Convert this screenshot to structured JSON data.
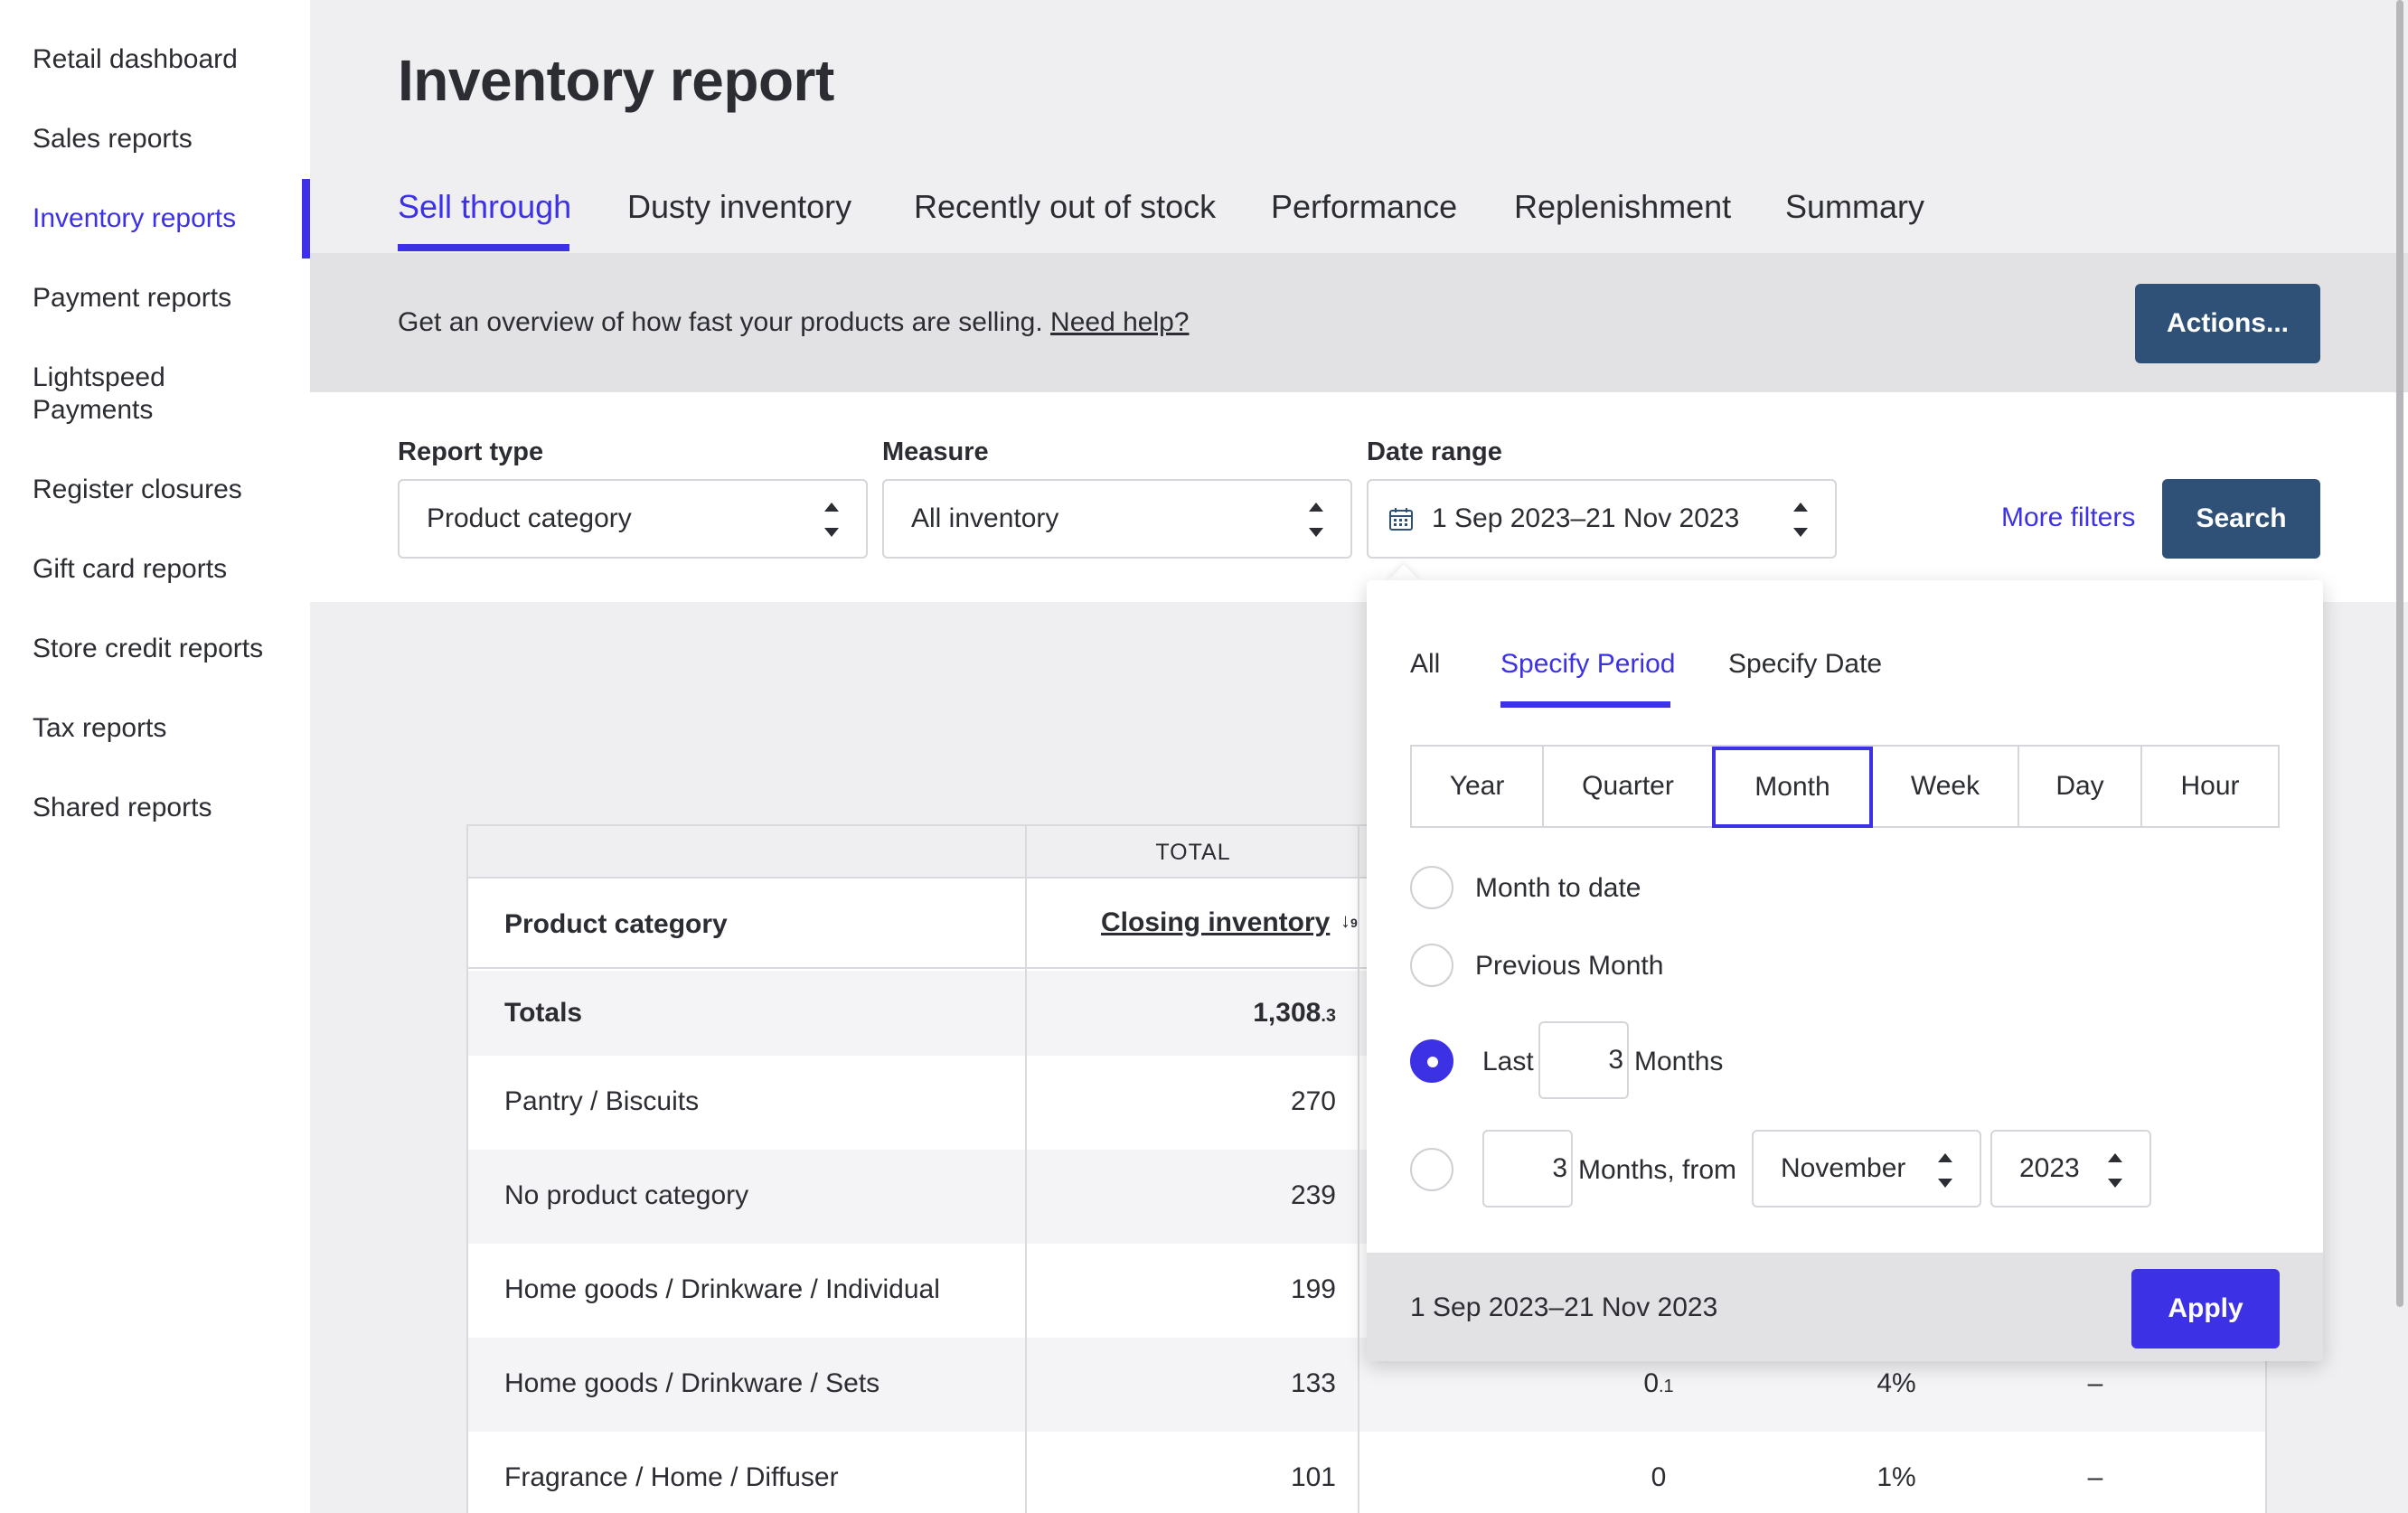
{
  "sidebar": {
    "items": [
      {
        "label": "Retail dashboard"
      },
      {
        "label": "Sales reports"
      },
      {
        "label": "Inventory reports"
      },
      {
        "label": "Payment reports"
      },
      {
        "label": "Lightspeed"
      },
      {
        "label": "Payments"
      },
      {
        "label": "Register closures"
      },
      {
        "label": "Gift card reports"
      },
      {
        "label": "Store credit reports"
      },
      {
        "label": "Tax reports"
      },
      {
        "label": "Shared reports"
      }
    ],
    "active_item": "Inventory reports"
  },
  "page": {
    "title": "Inventory report"
  },
  "tabs": [
    {
      "label": "Sell through"
    },
    {
      "label": "Dusty inventory"
    },
    {
      "label": "Recently out of stock"
    },
    {
      "label": "Performance"
    },
    {
      "label": "Replenishment"
    },
    {
      "label": "Summary"
    }
  ],
  "banner": {
    "text": "Get an overview of how fast your products are selling.",
    "help_link": "Need help?",
    "actions_label": "Actions..."
  },
  "filters": {
    "report_type_label": "Report type",
    "report_type_value": "Product category",
    "measure_label": "Measure",
    "measure_value": "All inventory",
    "date_range_label": "Date range",
    "date_range_value": "1 Sep 2023–21 Nov 2023",
    "more_filters_label": "More filters",
    "search_label": "Search"
  },
  "table": {
    "group_header": "TOTAL",
    "col_name": "Product category",
    "col_closing": "Closing inventory",
    "sort_icon": "sort-numeric-desc-icon",
    "totals_label": "Totals",
    "totals_value": "1,308",
    "totals_value_decimal": ".3",
    "rows": [
      {
        "name": "Pantry / Biscuits",
        "total": "270",
        "c3": "",
        "c4": "",
        "c5": ""
      },
      {
        "name": "No product category",
        "total": "239",
        "c3": "",
        "c4": "",
        "c5": ""
      },
      {
        "name": "Home goods / Drinkware / Individual",
        "total": "199",
        "c3": "",
        "c4": "",
        "c5": ""
      },
      {
        "name": "Home goods / Drinkware / Sets",
        "total": "133",
        "c3": "0",
        "c3_small": ".1",
        "c4": "4%",
        "c5": "–"
      },
      {
        "name": "Fragrance / Home / Diffuser",
        "total": "101",
        "c3": "0",
        "c3_small": "",
        "c4": "1%",
        "c5": "–"
      }
    ]
  },
  "popover": {
    "tabs": [
      {
        "label": "All"
      },
      {
        "label": "Specify Period"
      },
      {
        "label": "Specify Date"
      }
    ],
    "period_options": [
      "Year",
      "Quarter",
      "Month",
      "Week",
      "Day",
      "Hour"
    ],
    "selected_period": "Month",
    "options": {
      "month_to_date": "Month to date",
      "previous_month": "Previous Month",
      "last_label": "Last",
      "last_value": "3",
      "last_unit": "Months",
      "from_value": "3",
      "from_label": "Months, from",
      "from_month": "November",
      "from_year": "2023"
    },
    "footer_text": "1 Sep 2023–21 Nov 2023",
    "apply_label": "Apply"
  },
  "colors": {
    "accent": "#3c31e4",
    "primary_button": "#2f5177"
  }
}
